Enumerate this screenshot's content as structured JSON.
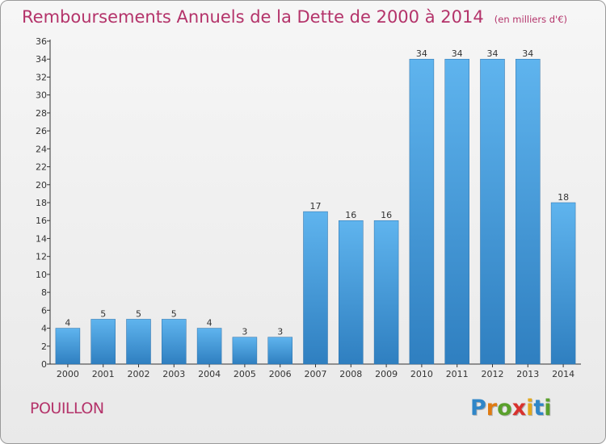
{
  "chart_data": {
    "type": "bar",
    "title": "Remboursements Annuels de la Dette de 2000 à 2014",
    "unit_label": "(en milliers d'€)",
    "categories": [
      "2000",
      "2001",
      "2002",
      "2003",
      "2004",
      "2005",
      "2006",
      "2007",
      "2008",
      "2009",
      "2010",
      "2011",
      "2012",
      "2013",
      "2014"
    ],
    "values": [
      4,
      5,
      5,
      5,
      4,
      3,
      3,
      17,
      16,
      16,
      34,
      34,
      34,
      34,
      18
    ],
    "ylim": [
      0,
      36
    ],
    "yticks": [
      0,
      2,
      4,
      6,
      8,
      10,
      12,
      14,
      16,
      18,
      20,
      22,
      24,
      26,
      28,
      30,
      32,
      34,
      36
    ],
    "grid": false,
    "bar_color": "#3d97da"
  },
  "commune": "POUILLON",
  "brand": {
    "letters": [
      "P",
      "r",
      "o",
      "x",
      "i",
      "t",
      "i"
    ],
    "colors": [
      "#2f86c8",
      "#e07b12",
      "#5aa02c",
      "#d8322e",
      "#e3a81c",
      "#2f86c8",
      "#5aa02c"
    ]
  },
  "colors": {
    "title": "#b4336a",
    "axis": "#333333"
  }
}
